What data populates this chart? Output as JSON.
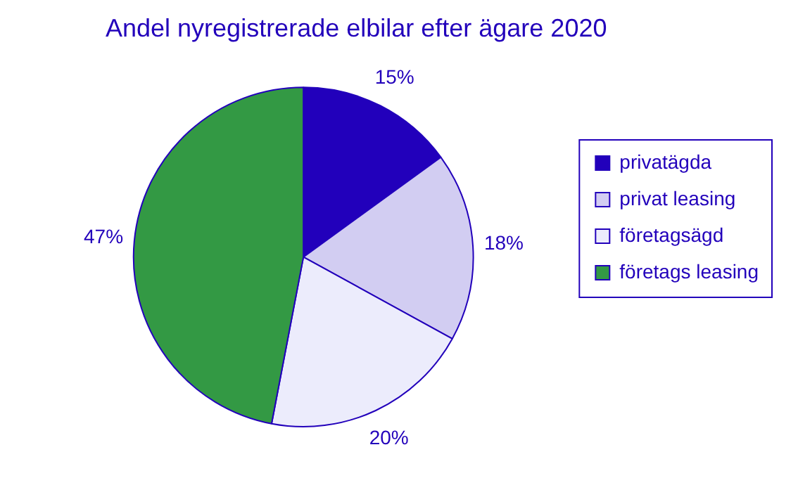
{
  "chart_data": {
    "type": "pie",
    "title": "Andel nyregistrerade elbilar efter ägare 2020",
    "categories": [
      "privatägda",
      "privat leasing",
      "företagsägd",
      "företags leasing"
    ],
    "values": [
      15,
      18,
      20,
      47
    ],
    "colors": [
      "#2200bb",
      "#d2cdf2",
      "#ececfc",
      "#339944"
    ],
    "value_labels": [
      "15%",
      "18%",
      "20%",
      "47%"
    ],
    "legend": "right"
  }
}
